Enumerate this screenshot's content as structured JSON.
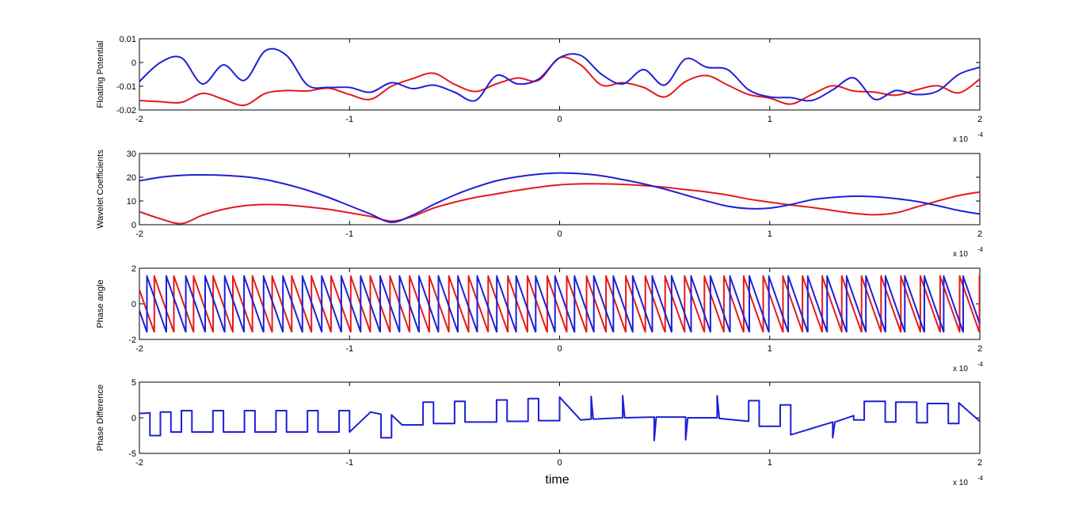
{
  "colors": {
    "series_red": "#e41a1c",
    "series_blue": "#1f1fd6",
    "axes": "#000000",
    "background": "#ffffff"
  },
  "chart_data": [
    {
      "type": "line",
      "ylabel": "Floating Potential",
      "xlabel": "",
      "xlim": [
        -2,
        2
      ],
      "ylim": [
        -0.02,
        0.01
      ],
      "x_exponent_label": "x 10",
      "x_exponent_power": "-4",
      "xticks": [
        -2,
        -1,
        0,
        1,
        2
      ],
      "xtick_labels": [
        "-2",
        "-1",
        "0",
        "1",
        "2"
      ],
      "yticks": [
        -0.02,
        -0.01,
        0,
        0.01
      ],
      "ytick_labels": [
        "-0.02",
        "-0.01",
        "0",
        "0.01"
      ],
      "grid": false,
      "series": [
        {
          "color": "#e41a1c",
          "x": [
            -2,
            -1.9,
            -1.8,
            -1.7,
            -1.6,
            -1.5,
            -1.4,
            -1.3,
            -1.2,
            -1.1,
            -1.0,
            -0.9,
            -0.8,
            -0.7,
            -0.6,
            -0.5,
            -0.4,
            -0.3,
            -0.2,
            -0.1,
            0,
            0.1,
            0.2,
            0.3,
            0.4,
            0.5,
            0.6,
            0.7,
            0.8,
            0.9,
            1.0,
            1.1,
            1.2,
            1.3,
            1.4,
            1.5,
            1.6,
            1.7,
            1.8,
            1.9,
            2.0
          ],
          "y": [
            -0.016,
            -0.0165,
            -0.0168,
            -0.013,
            -0.0155,
            -0.018,
            -0.013,
            -0.0118,
            -0.012,
            -0.0108,
            -0.0135,
            -0.0155,
            -0.01,
            -0.0068,
            -0.0045,
            -0.0092,
            -0.0122,
            -0.009,
            -0.0065,
            -0.0075,
            0.002,
            -0.001,
            -0.0095,
            -0.0085,
            -0.0105,
            -0.0145,
            -0.008,
            -0.0055,
            -0.0095,
            -0.0135,
            -0.015,
            -0.0175,
            -0.0135,
            -0.0098,
            -0.012,
            -0.0125,
            -0.0138,
            -0.0115,
            -0.0098,
            -0.0128,
            -0.007
          ]
        },
        {
          "color": "#1f1fd6",
          "x": [
            -2,
            -1.9,
            -1.8,
            -1.7,
            -1.6,
            -1.5,
            -1.4,
            -1.3,
            -1.2,
            -1.1,
            -1.0,
            -0.9,
            -0.8,
            -0.7,
            -0.6,
            -0.5,
            -0.4,
            -0.3,
            -0.2,
            -0.1,
            0,
            0.1,
            0.2,
            0.3,
            0.4,
            0.5,
            0.6,
            0.7,
            0.8,
            0.9,
            1.0,
            1.1,
            1.2,
            1.3,
            1.4,
            1.5,
            1.6,
            1.7,
            1.8,
            1.9,
            2.0
          ],
          "y": [
            -0.008,
            0.0,
            0.002,
            -0.009,
            -0.001,
            -0.0075,
            0.005,
            0.003,
            -0.0095,
            -0.0105,
            -0.0105,
            -0.0125,
            -0.0085,
            -0.011,
            -0.0095,
            -0.0125,
            -0.016,
            -0.0055,
            -0.009,
            -0.007,
            0.002,
            0.003,
            -0.005,
            -0.009,
            -0.003,
            -0.0095,
            0.0015,
            -0.002,
            -0.003,
            -0.0115,
            -0.0145,
            -0.0148,
            -0.016,
            -0.0115,
            -0.0065,
            -0.0155,
            -0.0118,
            -0.0135,
            -0.012,
            -0.005,
            -0.002
          ]
        }
      ]
    },
    {
      "type": "line",
      "ylabel": "Wavelet Coefficients",
      "xlabel": "",
      "xlim": [
        -2,
        2
      ],
      "ylim": [
        0,
        30
      ],
      "x_exponent_label": "x 10",
      "x_exponent_power": "-4",
      "xticks": [
        -2,
        -1,
        0,
        1,
        2
      ],
      "xtick_labels": [
        "-2",
        "-1",
        "0",
        "1",
        "2"
      ],
      "yticks": [
        0,
        10,
        20,
        30
      ],
      "ytick_labels": [
        "0",
        "10",
        "20",
        "30"
      ],
      "grid": false,
      "series": [
        {
          "color": "#e41a1c",
          "x": [
            -2,
            -1.9,
            -1.8,
            -1.7,
            -1.6,
            -1.5,
            -1.4,
            -1.3,
            -1.2,
            -1.1,
            -1.0,
            -0.9,
            -0.8,
            -0.7,
            -0.6,
            -0.5,
            -0.4,
            -0.3,
            -0.2,
            -0.1,
            0,
            0.1,
            0.2,
            0.3,
            0.4,
            0.5,
            0.6,
            0.7,
            0.8,
            0.9,
            1.0,
            1.1,
            1.2,
            1.3,
            1.4,
            1.5,
            1.6,
            1.7,
            1.8,
            1.9,
            2.0
          ],
          "y": [
            5.5,
            2.5,
            0.5,
            4.0,
            6.5,
            8.0,
            8.5,
            8.3,
            7.5,
            6.5,
            5.0,
            3.5,
            1.5,
            3.5,
            7.0,
            9.5,
            11.5,
            13.0,
            14.5,
            15.8,
            16.8,
            17.2,
            17.2,
            17.0,
            16.5,
            15.8,
            14.8,
            13.8,
            12.5,
            10.8,
            9.5,
            8.3,
            7.3,
            6.0,
            4.8,
            4.2,
            5.0,
            7.5,
            10.0,
            12.3,
            13.8
          ]
        },
        {
          "color": "#1f1fd6",
          "x": [
            -2,
            -1.9,
            -1.8,
            -1.7,
            -1.6,
            -1.5,
            -1.4,
            -1.3,
            -1.2,
            -1.1,
            -1.0,
            -0.9,
            -0.8,
            -0.7,
            -0.6,
            -0.5,
            -0.4,
            -0.3,
            -0.2,
            -0.1,
            0,
            0.1,
            0.2,
            0.3,
            0.4,
            0.5,
            0.6,
            0.7,
            0.8,
            0.9,
            1.0,
            1.1,
            1.2,
            1.3,
            1.4,
            1.5,
            1.6,
            1.7,
            1.8,
            1.9,
            2.0
          ],
          "y": [
            18.5,
            20.0,
            20.8,
            21.0,
            20.8,
            20.2,
            19.0,
            17.0,
            14.5,
            11.5,
            8.0,
            4.5,
            1.0,
            4.0,
            8.5,
            12.5,
            15.8,
            18.5,
            20.2,
            21.3,
            21.8,
            21.5,
            20.6,
            19.0,
            17.2,
            15.0,
            12.5,
            10.0,
            7.8,
            6.8,
            7.0,
            8.5,
            10.5,
            11.5,
            12.0,
            11.8,
            11.0,
            9.8,
            8.0,
            6.0,
            4.5
          ]
        }
      ]
    },
    {
      "type": "line",
      "ylabel": "Phase angle",
      "xlabel": "",
      "xlim": [
        -2,
        2
      ],
      "ylim": [
        -2,
        2
      ],
      "x_exponent_label": "x 10",
      "x_exponent_power": "-4",
      "xticks": [
        -2,
        -1,
        0,
        1,
        2
      ],
      "xtick_labels": [
        "-2",
        "-1",
        "0",
        "1",
        "2"
      ],
      "yticks": [
        -2,
        0,
        2
      ],
      "ytick_labels": [
        "-2",
        "0",
        "2"
      ],
      "grid": false,
      "series": [
        {
          "color": "#e41a1c",
          "waveform": "sawtooth",
          "amplitude": 1.57,
          "period": 0.0935,
          "phase": 0.25,
          "x_range": [
            -2,
            2
          ]
        },
        {
          "color": "#1f1fd6",
          "waveform": "sawtooth",
          "amplitude": 1.57,
          "period": 0.0925,
          "phase": 0.62,
          "x_range": [
            -2,
            2
          ]
        }
      ]
    },
    {
      "type": "line",
      "ylabel": "Phase Difference",
      "xlabel": "time",
      "xlim": [
        -2,
        2
      ],
      "ylim": [
        -5,
        5
      ],
      "x_exponent_label": "x 10",
      "x_exponent_power": "-4",
      "xticks": [
        -2,
        -1,
        0,
        1,
        2
      ],
      "xtick_labels": [
        "-2",
        "-1",
        "0",
        "1",
        "2"
      ],
      "yticks": [
        -5,
        0,
        5
      ],
      "ytick_labels": [
        "-5",
        "0",
        "5"
      ],
      "grid": false,
      "series": [
        {
          "color": "#1f1fd6",
          "x": [
            -2,
            -1.95,
            -1.95,
            -1.9,
            -1.9,
            -1.85,
            -1.85,
            -1.8,
            -1.8,
            -1.75,
            -1.75,
            -1.65,
            -1.65,
            -1.6,
            -1.6,
            -1.5,
            -1.5,
            -1.45,
            -1.45,
            -1.35,
            -1.35,
            -1.3,
            -1.3,
            -1.2,
            -1.2,
            -1.15,
            -1.15,
            -1.05,
            -1.05,
            -1.0,
            -1.0,
            -0.9,
            -0.85,
            -0.85,
            -0.8,
            -0.8,
            -0.75,
            -0.65,
            -0.65,
            -0.6,
            -0.6,
            -0.5,
            -0.5,
            -0.45,
            -0.45,
            -0.3,
            -0.3,
            -0.25,
            -0.25,
            -0.15,
            -0.15,
            -0.1,
            -0.1,
            0.0,
            0.0,
            0.1,
            0.15,
            0.15,
            0.16,
            0.3,
            0.3,
            0.31,
            0.45,
            0.45,
            0.46,
            0.6,
            0.6,
            0.61,
            0.75,
            0.75,
            0.76,
            0.9,
            0.9,
            0.95,
            0.95,
            1.05,
            1.05,
            1.1,
            1.1,
            1.3,
            1.3,
            1.31,
            1.4,
            1.4,
            1.45,
            1.45,
            1.55,
            1.55,
            1.6,
            1.6,
            1.7,
            1.7,
            1.75,
            1.75,
            1.85,
            1.85,
            1.9,
            1.9,
            2.0
          ],
          "y": [
            0.6,
            0.7,
            -2.5,
            -2.5,
            0.8,
            0.8,
            -2.0,
            -2.0,
            1.0,
            1.0,
            -2.0,
            -2.0,
            1.0,
            1.0,
            -2.0,
            -2.0,
            1.0,
            1.0,
            -2.0,
            -2.0,
            1.0,
            1.0,
            -2.0,
            -2.0,
            1.0,
            1.0,
            -2.0,
            -2.0,
            1.0,
            1.0,
            -2.0,
            0.8,
            0.5,
            -2.8,
            -2.8,
            0.4,
            -1.0,
            -1.0,
            2.2,
            2.2,
            -0.8,
            -0.8,
            2.3,
            2.3,
            -0.6,
            -0.6,
            2.5,
            2.5,
            -0.5,
            -0.5,
            2.7,
            2.7,
            -0.4,
            -0.4,
            2.9,
            -0.3,
            -0.2,
            3.0,
            -0.2,
            0.0,
            3.1,
            0.0,
            0.1,
            -3.2,
            0.1,
            0.1,
            -3.1,
            0.0,
            0.0,
            3.1,
            -0.1,
            -0.5,
            2.4,
            2.4,
            -1.2,
            -1.2,
            1.8,
            1.8,
            -2.4,
            -0.6,
            -2.8,
            -0.6,
            0.3,
            -0.3,
            -0.3,
            2.3,
            2.3,
            -0.6,
            -0.6,
            2.2,
            2.2,
            -0.7,
            -0.7,
            2.0,
            2.0,
            -0.8,
            -0.8,
            2.1,
            -0.5
          ]
        }
      ]
    }
  ]
}
